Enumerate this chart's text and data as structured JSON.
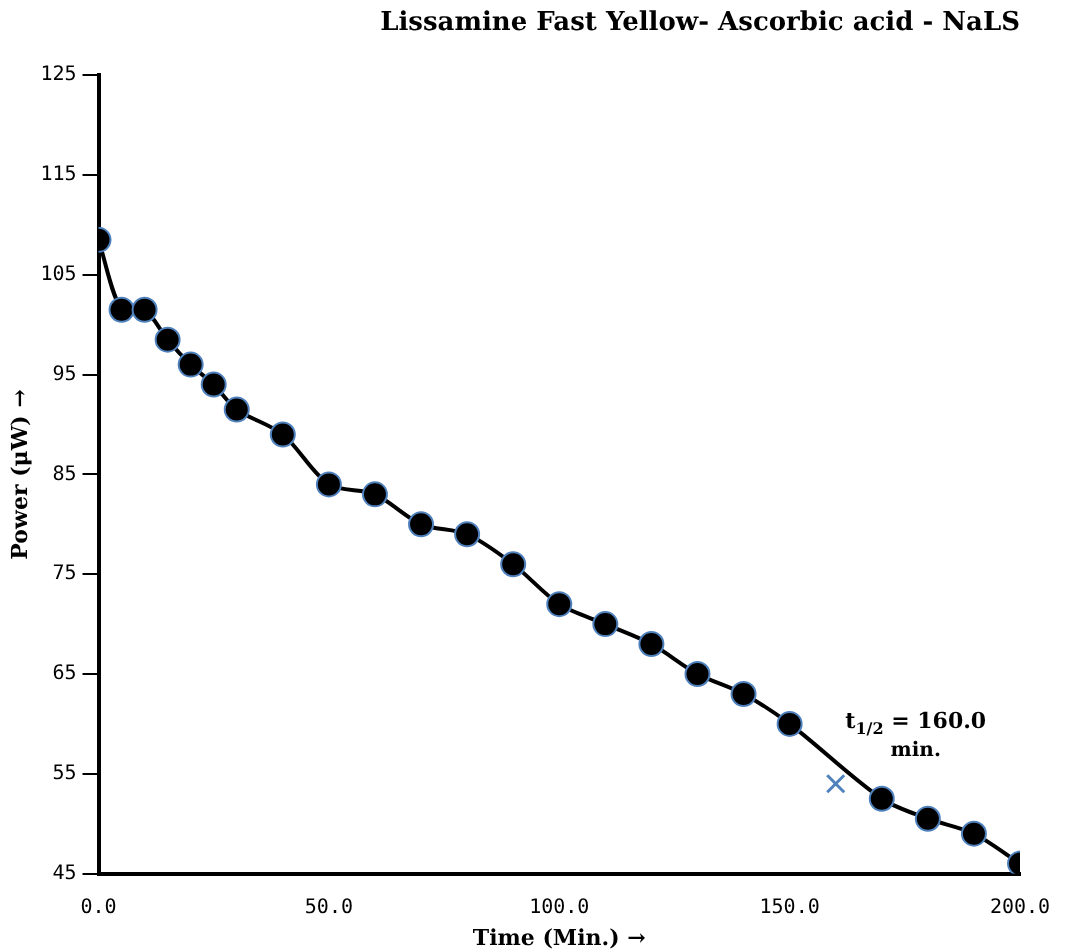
{
  "chart_data": {
    "type": "line",
    "title": "Lissamine Fast Yellow- Ascorbic acid - NaLS",
    "xlabel": "Time (Min.) →",
    "ylabel": "Power (μW) →",
    "xlim": [
      0,
      200
    ],
    "xticks": [
      {
        "value": 0,
        "label": "0.0"
      },
      {
        "value": 50,
        "label": "50.0"
      },
      {
        "value": 100,
        "label": "100.0"
      },
      {
        "value": 150,
        "label": "150.0"
      },
      {
        "value": 200,
        "label": "200.0"
      }
    ],
    "ylim": [
      45,
      125
    ],
    "yticks": [
      45,
      55,
      65,
      75,
      85,
      95,
      105,
      115,
      125
    ],
    "grid": false,
    "legend": false,
    "series": [
      {
        "type": "line",
        "color": "#000000",
        "marker": "circle",
        "x": [
          0,
          5,
          10,
          15,
          20,
          25,
          30,
          40,
          50,
          60,
          70,
          80,
          90,
          100,
          110,
          120,
          130,
          140,
          150,
          170,
          180,
          190,
          200
        ],
        "values": [
          108.5,
          101.5,
          101.5,
          98.5,
          96,
          94,
          91.5,
          89,
          84,
          83,
          80,
          79,
          76,
          72,
          70,
          68,
          65,
          63,
          60,
          52.5,
          50.5,
          49,
          46
        ]
      },
      {
        "type": "scatter",
        "color": "#4f81bd",
        "marker": "cross",
        "x": [
          160
        ],
        "values": [
          54
        ]
      }
    ],
    "annotations": [
      {
        "text": "t$_{1/2}$ = 160.0 min.",
        "x": 160,
        "y": 54
      }
    ]
  }
}
